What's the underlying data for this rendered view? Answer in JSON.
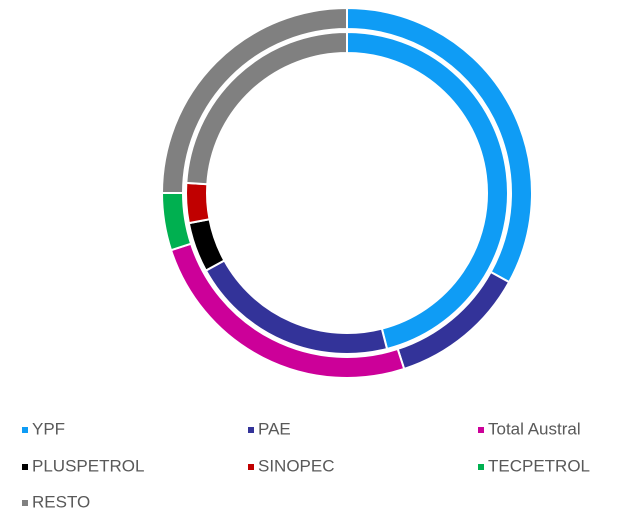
{
  "chart_data": {
    "type": "donut",
    "categories": [
      "YPF",
      "PAE",
      "Total Austral",
      "PLUSPETROL",
      "SINOPEC",
      "TECPETROL",
      "RESTO"
    ],
    "colors": [
      "#0f9cf5",
      "#333399",
      "#cc0099",
      "#000000",
      "#c00000",
      "#00b050",
      "#808080"
    ],
    "series": [
      {
        "values": [
          33,
          12,
          25,
          0,
          0,
          5,
          25
        ]
      },
      {
        "values": [
          46,
          21,
          0,
          5,
          4,
          0,
          24
        ]
      }
    ],
    "legend": "bottom"
  }
}
